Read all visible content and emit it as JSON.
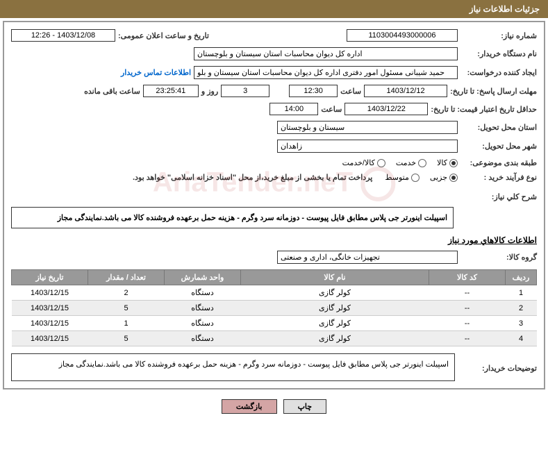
{
  "header": {
    "title": "جزئیات اطلاعات نیاز"
  },
  "fields": {
    "need_number_label": "شماره نیاز:",
    "need_number": "1103004493000006",
    "announce_label": "تاریخ و ساعت اعلان عمومی:",
    "announce_value": "1403/12/08 - 12:26",
    "buyer_org_label": "نام دستگاه خریدار:",
    "buyer_org": "اداره کل دیوان محاسبات استان سیستان و بلوچستان",
    "requester_label": "ایجاد کننده درخواست:",
    "requester": "حمید شیبانی مسئول امور دفتری اداره کل دیوان محاسبات استان سیستان و بلو",
    "buyer_contact": "اطلاعات تماس خریدار",
    "reply_deadline_label": "مهلت ارسال پاسخ: تا تاریخ:",
    "reply_deadline_date": "1403/12/12",
    "time_label": "ساعت",
    "reply_deadline_time": "12:30",
    "days_remaining": "3",
    "days_and": "روز و",
    "time_remaining": "23:25:41",
    "time_remaining_label": "ساعت باقی مانده",
    "price_validity_label": "حداقل تاریخ اعتبار قیمت: تا تاریخ:",
    "price_validity_date": "1403/12/22",
    "price_validity_time": "14:00",
    "delivery_province_label": "استان محل تحویل:",
    "delivery_province": "سیستان و بلوچستان",
    "delivery_city_label": "شهر محل تحویل:",
    "delivery_city": "زاهدان",
    "category_label": "طبقه بندی موضوعی:",
    "cat_goods": "کالا",
    "cat_service": "خدمت",
    "cat_goods_service": "کالا/خدمت",
    "purchase_type_label": "نوع فرآیند خرید :",
    "pt_minor": "جزیی",
    "pt_medium": "متوسط",
    "payment_note": "پرداخت تمام یا بخشی از مبلغ خرید،از محل \"اسناد خزانه اسلامی\" خواهد بود.",
    "need_desc_label": "شرح کلي نياز:",
    "need_desc": "اسپیلت اینورتر جی پلاس مطابق فایل پیوست   - دوزمانه سرد وگرم - هزینه حمل برعهده فروشنده کالا می باشد.نمایندگی مجاز",
    "goods_info_title": "اطلاعات کالاهاي مورد نياز",
    "goods_group_label": "گروه کالا:",
    "goods_group": "تجهیزات خانگی، اداری و صنعتی",
    "buyer_notes_label": "توضيحات خريدار:",
    "buyer_notes": "اسپیلت اینورتر جی پلاس مطابق فایل پیوست   - دوزمانه سرد وگرم - هزینه حمل برعهده فروشنده کالا می باشد.نمایندگی مجاز"
  },
  "table": {
    "headers": {
      "row": "ردیف",
      "code": "کد کالا",
      "name": "نام کالا",
      "unit": "واحد شمارش",
      "qty": "تعداد / مقدار",
      "date": "تاریخ نیاز"
    },
    "rows": [
      {
        "row": "1",
        "code": "--",
        "name": "کولر گازی",
        "unit": "دستگاه",
        "qty": "2",
        "date": "1403/12/15"
      },
      {
        "row": "2",
        "code": "--",
        "name": "کولر گازی",
        "unit": "دستگاه",
        "qty": "5",
        "date": "1403/12/15"
      },
      {
        "row": "3",
        "code": "--",
        "name": "کولر گازی",
        "unit": "دستگاه",
        "qty": "1",
        "date": "1403/12/15"
      },
      {
        "row": "4",
        "code": "--",
        "name": "کولر گازی",
        "unit": "دستگاه",
        "qty": "5",
        "date": "1403/12/15"
      }
    ]
  },
  "buttons": {
    "print": "چاپ",
    "back": "بازگشت"
  },
  "colors": {
    "header_bg": "#8a7140",
    "th_bg": "#999999",
    "border": "#333333",
    "link": "#0066cc"
  }
}
